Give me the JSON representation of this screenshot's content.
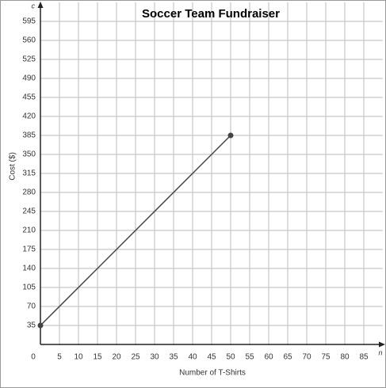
{
  "chart_data": {
    "type": "line",
    "title": "Soccer Team Fundraiser",
    "x_label": "Number of T-Shirts",
    "y_label": "Cost ($)",
    "x_axis_variable": "n",
    "y_axis_variable": "c",
    "x": [
      0,
      50
    ],
    "series": [
      {
        "name": "Cost",
        "color": "#444444",
        "values": [
          35,
          385
        ]
      }
    ],
    "xlim": [
      0,
      90
    ],
    "ylim": [
      0,
      630
    ],
    "xticks": [
      0,
      5,
      10,
      15,
      20,
      25,
      30,
      35,
      40,
      45,
      50,
      55,
      60,
      65,
      70,
      75,
      80,
      85
    ],
    "yticks": [
      35,
      70,
      105,
      140,
      175,
      210,
      245,
      280,
      315,
      350,
      385,
      420,
      455,
      490,
      525,
      560,
      595
    ],
    "grid": true
  }
}
